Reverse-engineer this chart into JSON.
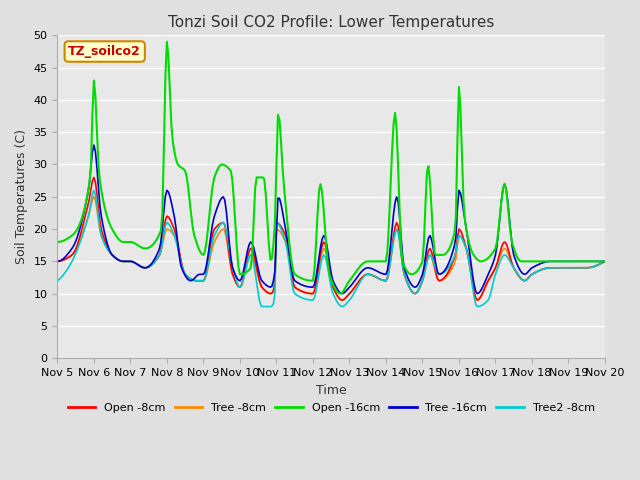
{
  "title": "Tonzi Soil CO2 Profile: Lower Temperatures",
  "xlabel": "Time",
  "ylabel": "Soil Temperatures (C)",
  "ylim": [
    0,
    50
  ],
  "yticks": [
    0,
    5,
    10,
    15,
    20,
    25,
    30,
    35,
    40,
    45,
    50
  ],
  "bg_color": "#e0e0e0",
  "plot_bg_color": "#e8e8e8",
  "grid_color": "#ffffff",
  "annotation_text": "TZ_soilco2",
  "annotation_color": "#cc0000",
  "annotation_bg": "#ffffcc",
  "annotation_border": "#cc8800",
  "series_colors": {
    "Open -8cm": "#ff0000",
    "Tree -8cm": "#ff8800",
    "Open -16cm": "#00dd00",
    "Tree -16cm": "#0000cc",
    "Tree2 -8cm": "#00cccc"
  },
  "x_labels": [
    "Nov 5",
    "Nov 6",
    "Nov 7",
    "Nov 8",
    "Nov 9",
    "Nov 10",
    "Nov 11",
    "Nov 12",
    "Nov 13",
    "Nov 14",
    "Nov 15",
    "Nov 16",
    "Nov 17",
    "Nov 18",
    "Nov 19",
    "Nov 20"
  ],
  "lw": 1.2
}
